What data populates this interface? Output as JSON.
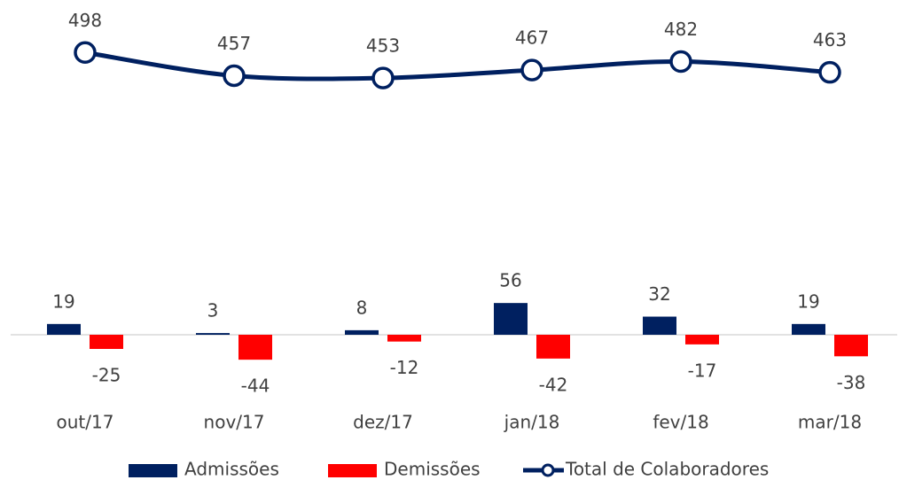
{
  "chart_data": {
    "type": "bar",
    "categories": [
      "out/17",
      "nov/17",
      "dez/17",
      "jan/18",
      "fev/18",
      "mar/18"
    ],
    "series": [
      {
        "name": "Admissões",
        "color": "#002060",
        "values": [
          19,
          3,
          8,
          56,
          32,
          19
        ]
      },
      {
        "name": "Demissões",
        "color": "#ff0000",
        "values": [
          -25,
          -44,
          -12,
          -42,
          -17,
          -38
        ]
      },
      {
        "name": "Total de Colaboradores",
        "color": "#002060",
        "type": "line",
        "axis": "y2",
        "values": [
          498,
          457,
          453,
          467,
          482,
          463
        ]
      }
    ],
    "ylim": [
      -100,
      500
    ],
    "y2lim": [
      -100,
      500
    ],
    "legend": "bottom"
  }
}
